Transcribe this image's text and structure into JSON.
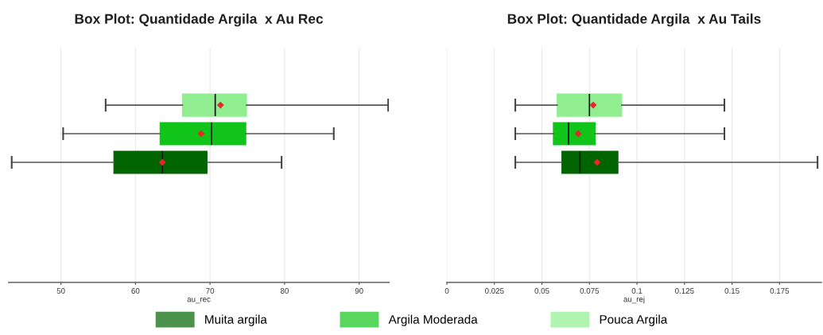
{
  "chart_data": [
    {
      "type": "box",
      "title": "Box Plot: Quantidade Argila  x Au Rec",
      "xlabel": "au_rec",
      "orientation": "horizontal",
      "categories": [
        null
      ],
      "grid": "x",
      "legend": "bottom",
      "xlim": [
        43,
        94
      ],
      "xticks": [
        50,
        60,
        70,
        80,
        90
      ],
      "series": [
        {
          "name": "Muita argila",
          "color": "#006400",
          "boxes": [
            {
              "low": 43.4,
              "q1": 57.1,
              "median": 63.6,
              "q3": 69.6,
              "high": 79.6,
              "mean": 63.6
            }
          ]
        },
        {
          "name": "Argila Moderada",
          "color": "#11c41a",
          "boxes": [
            {
              "low": 50.3,
              "q1": 63.3,
              "median": 70.2,
              "q3": 74.8,
              "high": 86.6,
              "mean": 68.8
            }
          ]
        },
        {
          "name": "Pouca Argila",
          "color": "#90ee90",
          "boxes": [
            {
              "low": 56.0,
              "q1": 66.3,
              "median": 70.7,
              "q3": 74.9,
              "high": 93.9,
              "mean": 71.4
            }
          ]
        }
      ]
    },
    {
      "type": "box",
      "title": "Box Plot: Quantidade Argila  x Au Tails",
      "xlabel": "au_rej",
      "orientation": "horizontal",
      "categories": [
        null
      ],
      "grid": "x",
      "xlim": [
        0,
        0.197
      ],
      "xticks": [
        0,
        0.025,
        0.05,
        0.075,
        0.1,
        0.125,
        0.15,
        0.175
      ],
      "series": [
        {
          "color": "#006400",
          "boxes": [
            {
              "low": 0.036,
              "q1": 0.0605,
              "median": 0.07,
              "q3": 0.09,
              "high": 0.195,
              "mean": 0.079
            }
          ]
        },
        {
          "color": "#11c41a",
          "boxes": [
            {
              "low": 0.036,
              "q1": 0.056,
              "median": 0.064,
              "q3": 0.078,
              "high": 0.146,
              "mean": 0.069
            }
          ]
        },
        {
          "color": "#90ee90",
          "boxes": [
            {
              "low": 0.036,
              "q1": 0.058,
              "median": 0.075,
              "q3": 0.092,
              "high": 0.146,
              "mean": 0.077
            }
          ]
        }
      ]
    }
  ]
}
